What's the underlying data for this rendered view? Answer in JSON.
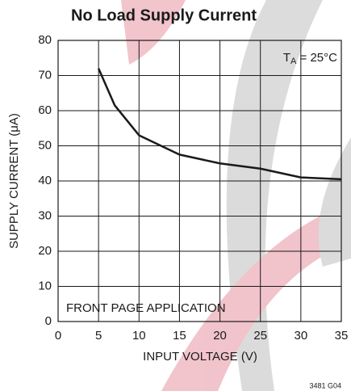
{
  "chart_data": {
    "type": "line",
    "title": "No Load Supply Current",
    "x_label": "INPUT VOLTAGE (V)",
    "y_label": "SUPPLY CURRENT (μA)",
    "annotation_symbol": "T",
    "annotation_subscript": "A",
    "annotation_text": " = 25°C",
    "note": "FRONT PAGE APPLICATION",
    "figure_id": "3481 G04",
    "x": [
      5,
      7,
      10,
      15,
      20,
      25,
      30,
      35
    ],
    "series": [
      {
        "color": "#1a1a1a",
        "values": [
          72,
          61.5,
          53,
          47.5,
          45,
          43.5,
          41,
          40.5
        ]
      }
    ],
    "xlim": [
      0,
      35
    ],
    "xticks": [
      0,
      5,
      10,
      15,
      20,
      25,
      30,
      35
    ],
    "ylim": [
      0,
      80
    ],
    "yticks": [
      0,
      10,
      20,
      30,
      40,
      50,
      60,
      70,
      80
    ],
    "grid": true
  }
}
